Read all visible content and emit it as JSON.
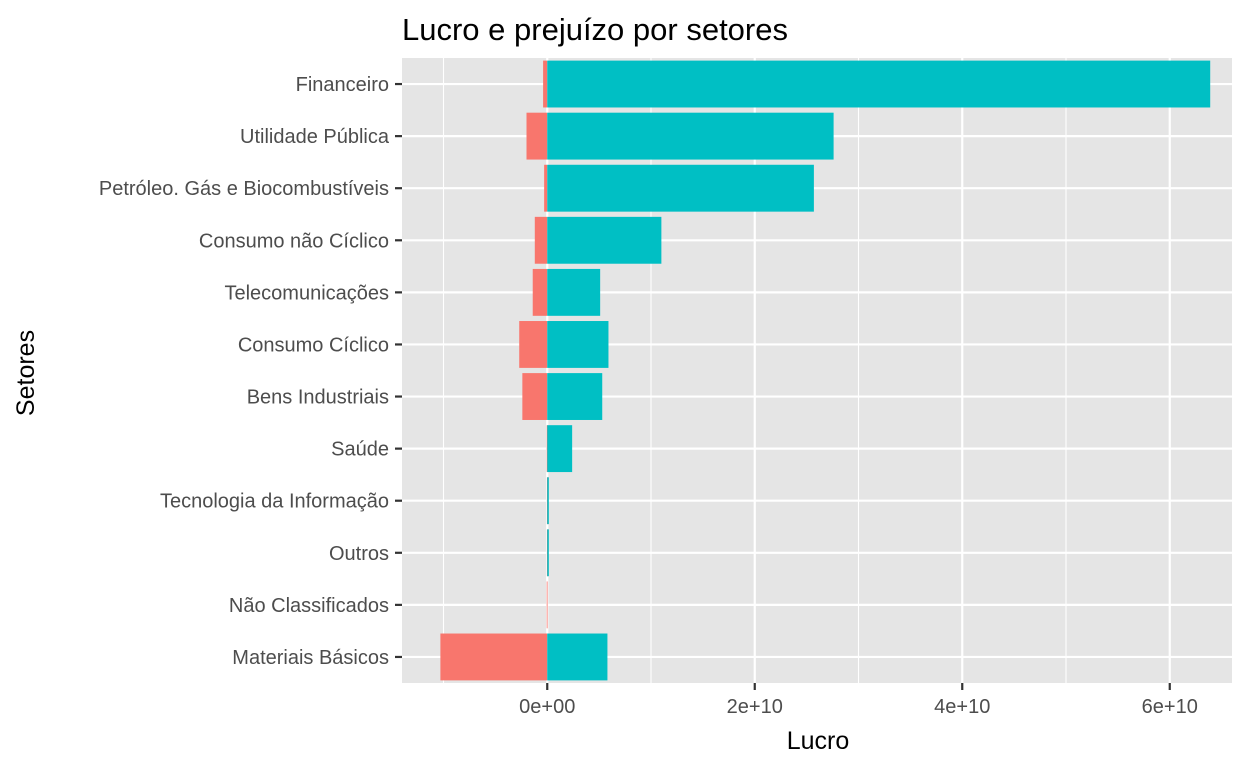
{
  "chart_data": {
    "type": "bar",
    "orientation": "horizontal",
    "stacked": true,
    "title": "Lucro e prejuízo por setores",
    "xlabel": "Lucro",
    "ylabel": "Setores",
    "xlim": [
      -14000000000,
      66000000000
    ],
    "x_ticks": [
      0,
      20000000000,
      40000000000,
      60000000000
    ],
    "x_tick_labels": [
      "0e+00",
      "2e+10",
      "4e+10",
      "6e+10"
    ],
    "categories": [
      "Financeiro",
      "Utilidade Pública",
      "Petróleo. Gás e Biocombustíveis",
      "Consumo não Cíclico",
      "Telecomunicações",
      "Consumo Cíclico",
      "Bens Industriais",
      "Saúde",
      "Tecnologia da Informação",
      "Outros",
      "Não Classificados",
      "Materiais Básicos"
    ],
    "series": [
      {
        "color": "#F8766D",
        "values": [
          -400000000,
          -2000000000,
          -300000000,
          -1200000000,
          -1400000000,
          -2700000000,
          -2400000000,
          -50000000,
          -30000000,
          -30000000,
          -50000000,
          -10300000000
        ]
      },
      {
        "color": "#00BFC4",
        "values": [
          63900000000,
          27600000000,
          25700000000,
          11000000000,
          5100000000,
          5900000000,
          5300000000,
          2400000000,
          150000000,
          150000000,
          0,
          5800000000
        ]
      }
    ],
    "grid": true,
    "legend": "none",
    "panel_background": "#E5E5E5"
  }
}
